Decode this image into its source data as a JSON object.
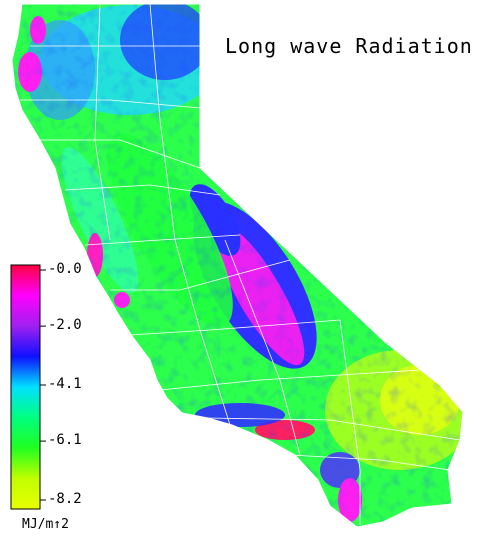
{
  "title": "Long wave Radiation",
  "colorbar": {
    "unit": "MJ/m↑2",
    "ticks": [
      {
        "label": "-0.0",
        "value": 0.0
      },
      {
        "label": "-2.0",
        "value": -2.0
      },
      {
        "label": "-4.1",
        "value": -4.1
      },
      {
        "label": "-6.1",
        "value": -6.1
      },
      {
        "label": "-8.2",
        "value": -8.2
      }
    ],
    "range": [
      -8.2,
      0.0
    ],
    "colors": [
      "#ff0040",
      "#ff00ff",
      "#a020f0",
      "#1010ff",
      "#00e0ff",
      "#00ff80",
      "#20ff20",
      "#c0ff00",
      "#e8ff00"
    ]
  },
  "map": {
    "region": "California",
    "boundaries": "county lines",
    "boundary_color": "#ffffff"
  },
  "chart_data": {
    "type": "heatmap",
    "title": "Long wave Radiation",
    "colorbar_label": "MJ/m↑2",
    "colorbar_range": [
      -8.2,
      0.0
    ],
    "colorbar_ticks": [
      0.0,
      -2.0,
      -4.1,
      -6.1,
      -8.2
    ]
  }
}
